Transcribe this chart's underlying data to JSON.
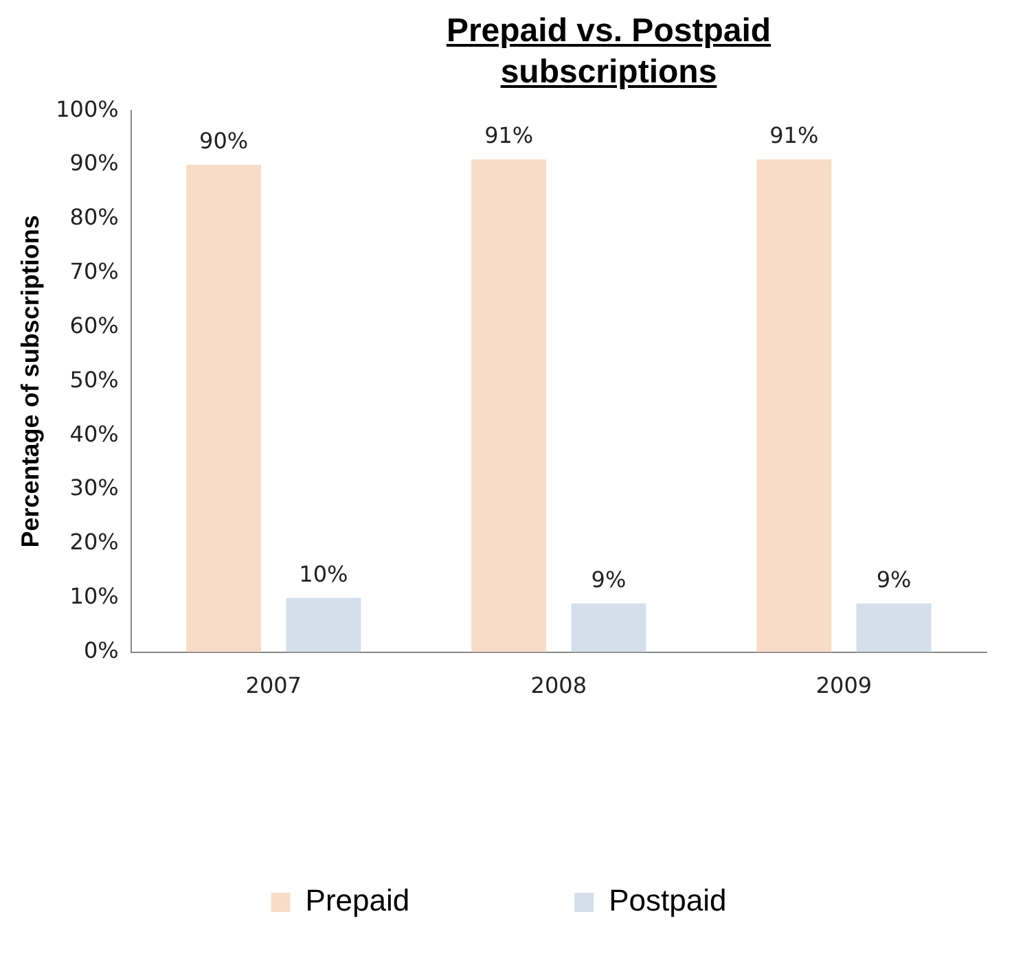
{
  "chart_data": {
    "type": "bar",
    "title": "Prepaid vs. Postpaid subscriptions",
    "ylabel": "Percentage of subscriptions",
    "categories": [
      "2007",
      "2008",
      "2009"
    ],
    "series": [
      {
        "name": "Prepaid",
        "color": "#f8dcc8",
        "values": [
          90,
          91,
          91
        ],
        "value_labels": [
          "90%",
          "91%",
          "91%"
        ]
      },
      {
        "name": "Postpaid",
        "color": "#d5deeb",
        "values": [
          10,
          9,
          9
        ],
        "value_labels": [
          "10%",
          "9%",
          "9%"
        ]
      }
    ],
    "ylim": [
      0,
      100
    ],
    "yticks": [
      {
        "value": 0,
        "label": "0%"
      },
      {
        "value": 10,
        "label": "10%"
      },
      {
        "value": 20,
        "label": "20%"
      },
      {
        "value": 30,
        "label": "30%"
      },
      {
        "value": 40,
        "label": "40%"
      },
      {
        "value": 50,
        "label": "50%"
      },
      {
        "value": 60,
        "label": "60%"
      },
      {
        "value": 70,
        "label": "70%"
      },
      {
        "value": 80,
        "label": "80%"
      },
      {
        "value": 90,
        "label": "90%"
      },
      {
        "value": 100,
        "label": "100%"
      }
    ],
    "grid": false,
    "legend": "bottom"
  }
}
